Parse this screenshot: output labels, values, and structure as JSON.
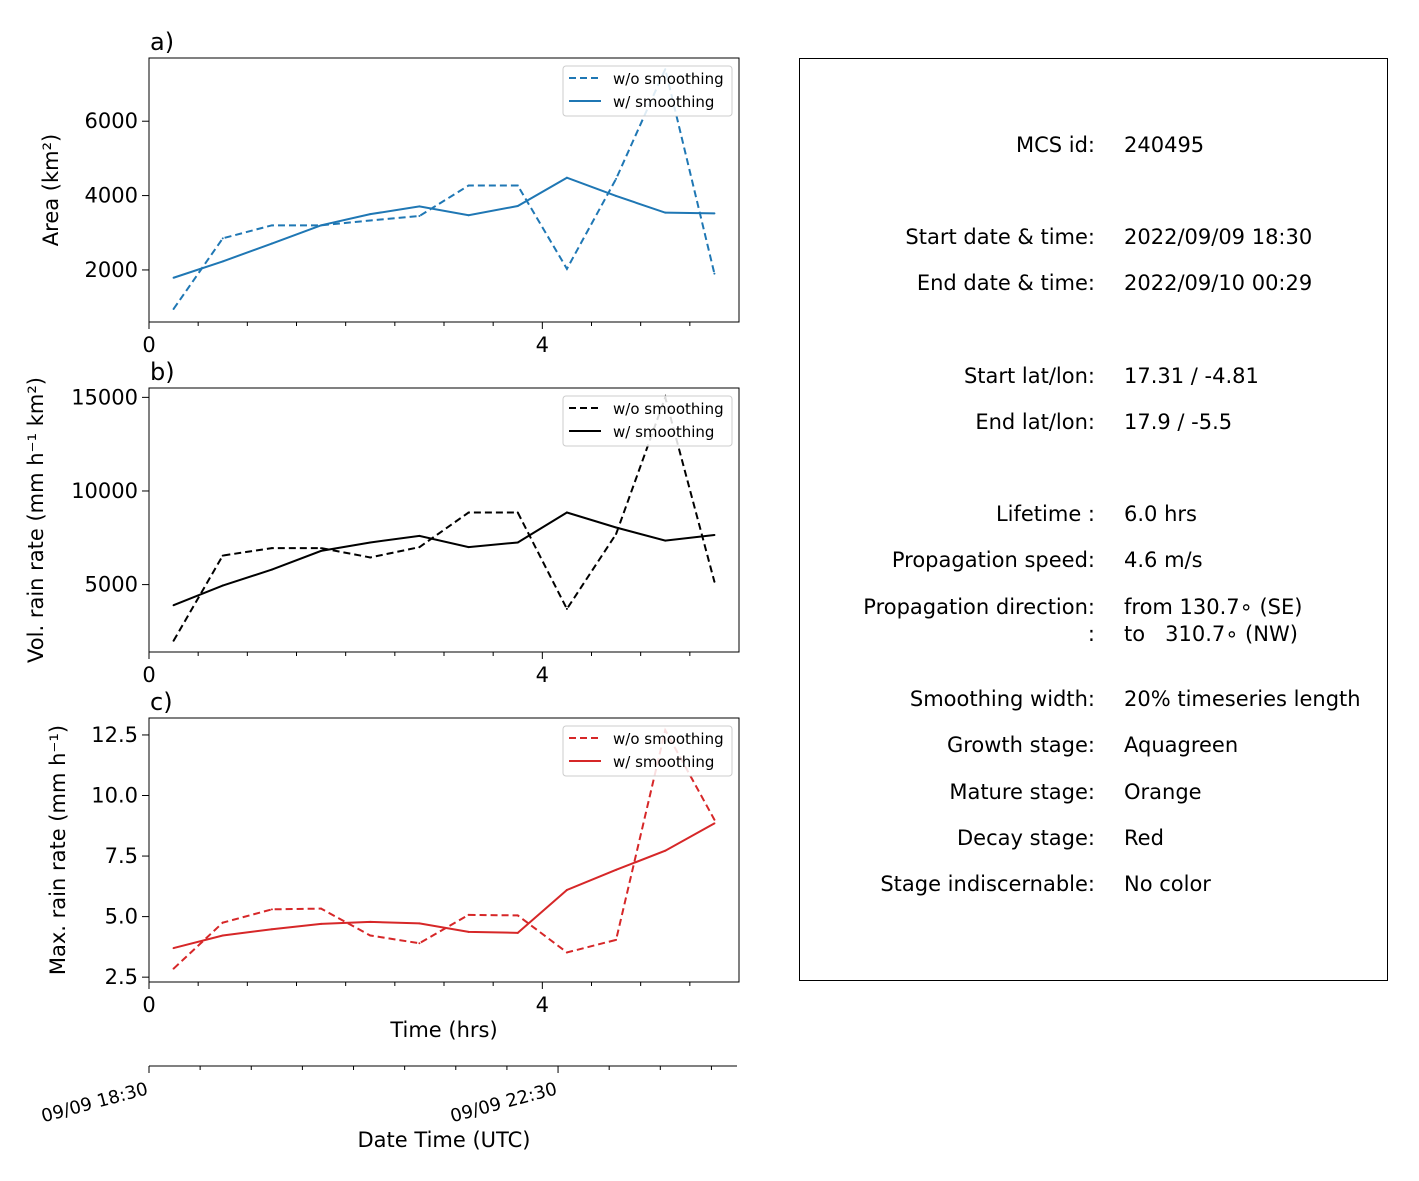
{
  "colors": {
    "area": "#1f77b4",
    "volrain": "#000000",
    "maxrain": "#d62728"
  },
  "legend": {
    "no_smoothing": "w/o smoothing",
    "smoothing": "w/ smoothing"
  },
  "time_axis": {
    "xlabel": "Time (hrs)",
    "datetime_label": "Date Time (UTC)",
    "datetime_ticks": [
      "09/09 18:30",
      "09/09 22:30"
    ]
  },
  "chart_data": [
    {
      "type": "line",
      "panel_label": "a)",
      "ylabel": "Area (km²)",
      "xlim": [
        0,
        6
      ],
      "ylim": [
        600,
        7700
      ],
      "yticks": [
        "2000",
        "4000",
        "6000"
      ],
      "xticks": [
        "0",
        "4"
      ],
      "x": [
        0.25,
        0.75,
        1.25,
        1.75,
        2.25,
        2.75,
        3.25,
        3.75,
        4.25,
        4.75,
        5.25,
        5.75
      ],
      "series": [
        {
          "name": "w/o smoothing",
          "style": "dashed",
          "values": [
            950,
            2850,
            3200,
            3200,
            3330,
            3450,
            4270,
            4270,
            2030,
            4450,
            7400,
            1900
          ]
        },
        {
          "name": "w/ smoothing",
          "style": "solid",
          "values": [
            1790,
            2230,
            2710,
            3200,
            3500,
            3710,
            3470,
            3720,
            4480,
            3990,
            3540,
            3520
          ]
        }
      ]
    },
    {
      "type": "line",
      "panel_label": "b)",
      "ylabel": "Vol. rain rate (mm h⁻¹ km²)",
      "xlim": [
        0,
        6
      ],
      "ylim": [
        1400,
        15500
      ],
      "yticks": [
        "5000",
        "10000",
        "15000"
      ],
      "xticks": [
        "0",
        "4"
      ],
      "x": [
        0.25,
        0.75,
        1.25,
        1.75,
        2.25,
        2.75,
        3.25,
        3.75,
        4.25,
        4.75,
        5.25,
        5.75
      ],
      "series": [
        {
          "name": "w/o smoothing",
          "style": "dashed",
          "values": [
            2000,
            6550,
            6950,
            6950,
            6450,
            7000,
            8850,
            8850,
            3700,
            7700,
            15000,
            5150
          ]
        },
        {
          "name": "w/ smoothing",
          "style": "solid",
          "values": [
            3900,
            4950,
            5800,
            6800,
            7250,
            7600,
            7000,
            7250,
            8850,
            8050,
            7350,
            7650
          ]
        }
      ]
    },
    {
      "type": "line",
      "panel_label": "c)",
      "ylabel": "Max. rain rate (mm h⁻¹)",
      "xlim": [
        0,
        6
      ],
      "ylim": [
        2.3,
        13.2
      ],
      "yticks": [
        "2.5",
        "5.0",
        "7.5",
        "10.0",
        "12.5"
      ],
      "xticks": [
        "0",
        "4"
      ],
      "x": [
        0.25,
        0.75,
        1.25,
        1.75,
        2.25,
        2.75,
        3.25,
        3.75,
        4.25,
        4.75,
        5.25,
        5.75
      ],
      "series": [
        {
          "name": "w/o smoothing",
          "style": "dashed",
          "values": [
            2.85,
            4.75,
            5.3,
            5.33,
            4.22,
            3.9,
            5.07,
            5.05,
            3.52,
            4.04,
            12.7,
            9.0
          ]
        },
        {
          "name": "w/ smoothing",
          "style": "solid",
          "values": [
            3.7,
            4.22,
            4.48,
            4.7,
            4.78,
            4.72,
            4.37,
            4.33,
            6.1,
            6.93,
            7.72,
            8.85
          ]
        }
      ]
    }
  ],
  "info": {
    "mcs_id": {
      "label": "MCS id:",
      "value": "240495"
    },
    "start_time": {
      "label": "Start date & time:",
      "value": "2022/09/09 18:30"
    },
    "end_time": {
      "label": "End date & time:",
      "value": "2022/09/10 00:29"
    },
    "start_latlon": {
      "label": "Start lat/lon:",
      "value": "17.31 / -4.81"
    },
    "end_latlon": {
      "label": "End lat/lon:",
      "value": "17.9 / -5.5"
    },
    "lifetime": {
      "label": "Lifetime :",
      "value": "6.0 hrs"
    },
    "prop_speed": {
      "label": "Propagation speed:",
      "value": "4.6 m/s"
    },
    "prop_dir": {
      "label": "Propagation direction:",
      "value": "from 130.7∘ (SE)"
    },
    "prop_dir2": {
      "label": ":",
      "value": "to   310.7∘ (NW)"
    },
    "smoothing_width": {
      "label": "Smoothing width:",
      "value": "20% timeseries length"
    },
    "growth_stage": {
      "label": "Growth stage:",
      "value": "Aquagreen"
    },
    "mature_stage": {
      "label": "Mature stage:",
      "value": "Orange"
    },
    "decay_stage": {
      "label": "Decay stage:",
      "value": "Red"
    },
    "stage_indiscernable": {
      "label": "Stage indiscernable:",
      "value": "No color"
    }
  }
}
